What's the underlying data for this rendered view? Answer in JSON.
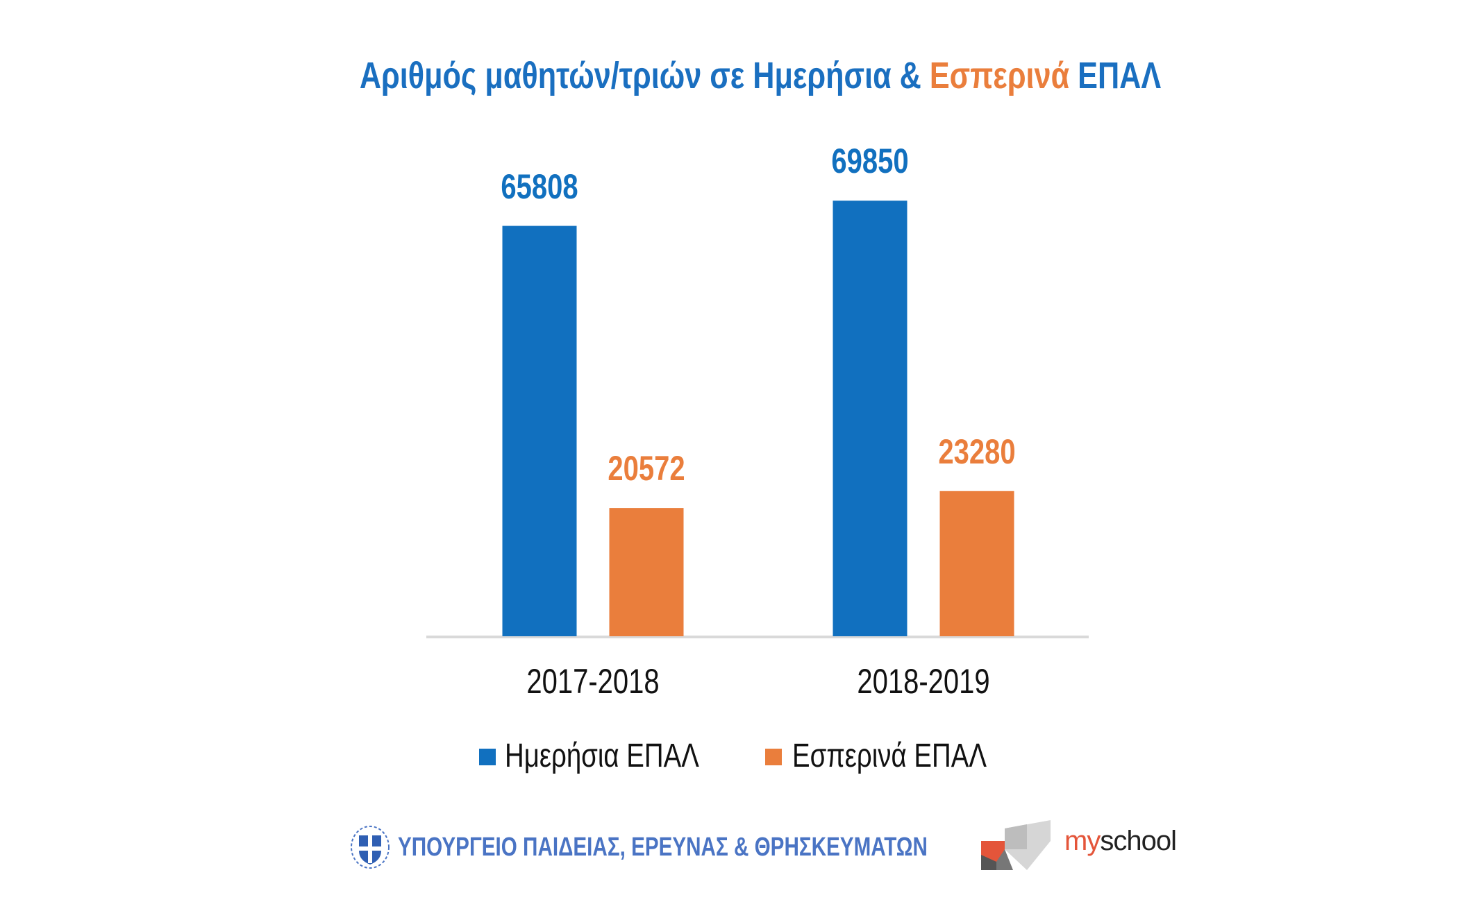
{
  "chart_data": {
    "type": "bar",
    "title": {
      "part1": "Αριθμός μαθητών/τριών σε Ημερήσια & ",
      "part2": "Εσπερινά",
      "part3": " ΕΠΑΛ"
    },
    "categories": [
      "2017-2018",
      "2018-2019"
    ],
    "series": [
      {
        "name": "Ημερήσια ΕΠΑΛ",
        "values": [
          65808,
          69850
        ],
        "color": "#1170bf"
      },
      {
        "name": "Εσπερινά ΕΠΑΛ",
        "values": [
          20572,
          23280
        ],
        "color": "#ea7e3c"
      }
    ],
    "data_labels": true,
    "ylim": [
      0,
      80000
    ],
    "grid": false,
    "y_axis_visible": false,
    "legend": "bottom"
  },
  "footer": {
    "ministry": "ΥΠΟΥΡΓΕΙΟ ΠΑΙΔΕΙΑΣ, ΕΡΕΥΝΑΣ & ΘΡΗΣΚΕΥΜΑΤΩΝ",
    "ministry_logo": "greek-coat-of-arms-icon",
    "brand_my": "my",
    "brand_school": "school",
    "brand_logo": "myschool-logo-icon"
  }
}
